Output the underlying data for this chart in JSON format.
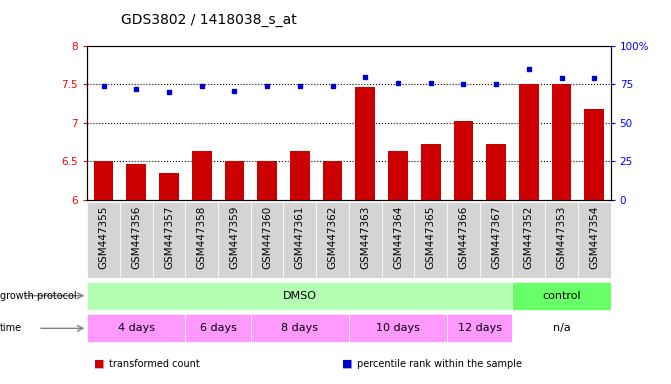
{
  "title": "GDS3802 / 1418038_s_at",
  "samples": [
    "GSM447355",
    "GSM447356",
    "GSM447357",
    "GSM447358",
    "GSM447359",
    "GSM447360",
    "GSM447361",
    "GSM447362",
    "GSM447363",
    "GSM447364",
    "GSM447365",
    "GSM447366",
    "GSM447367",
    "GSM447352",
    "GSM447353",
    "GSM447354"
  ],
  "transformed_counts": [
    6.5,
    6.47,
    6.35,
    6.63,
    6.5,
    6.5,
    6.63,
    6.5,
    7.47,
    6.63,
    6.72,
    7.03,
    6.72,
    7.5,
    7.5,
    7.18
  ],
  "percentile_ranks": [
    74,
    72,
    70,
    74,
    71,
    74,
    74,
    74,
    80,
    76,
    76,
    75,
    75,
    85,
    79,
    79
  ],
  "ymin": 6.0,
  "ymax": 8.0,
  "yticks": [
    6.0,
    6.5,
    7.0,
    7.5,
    8.0
  ],
  "ytick_labels": [
    "6",
    "6.5",
    "7",
    "7.5",
    "8"
  ],
  "right_yticks": [
    0,
    25,
    50,
    75,
    100
  ],
  "right_ytick_labels": [
    "0",
    "25",
    "50",
    "75",
    "100%"
  ],
  "bar_color": "#cc0000",
  "dot_color": "#0000cc",
  "dotted_lines": [
    6.5,
    7.0,
    7.5
  ],
  "growth_protocol_groups": [
    {
      "label": "DMSO",
      "start": 0,
      "end": 13,
      "color": "#b3ffb3"
    },
    {
      "label": "control",
      "start": 13,
      "end": 16,
      "color": "#66ff66"
    }
  ],
  "time_groups": [
    {
      "label": "4 days",
      "start": 0,
      "end": 3,
      "color": "#ff99ff"
    },
    {
      "label": "6 days",
      "start": 3,
      "end": 5,
      "color": "#ff99ff"
    },
    {
      "label": "8 days",
      "start": 5,
      "end": 8,
      "color": "#ff99ff"
    },
    {
      "label": "10 days",
      "start": 8,
      "end": 11,
      "color": "#ff99ff"
    },
    {
      "label": "12 days",
      "start": 11,
      "end": 13,
      "color": "#ff99ff"
    },
    {
      "label": "n/a",
      "start": 13,
      "end": 16,
      "color": "#ffffff"
    }
  ],
  "legend_items": [
    {
      "label": "transformed count",
      "color": "#cc0000"
    },
    {
      "label": "percentile rank within the sample",
      "color": "#0000cc"
    }
  ],
  "label_fontsize": 7.5,
  "title_fontsize": 10,
  "bar_width": 0.6,
  "xtick_bg_color": "#d4d4d4"
}
